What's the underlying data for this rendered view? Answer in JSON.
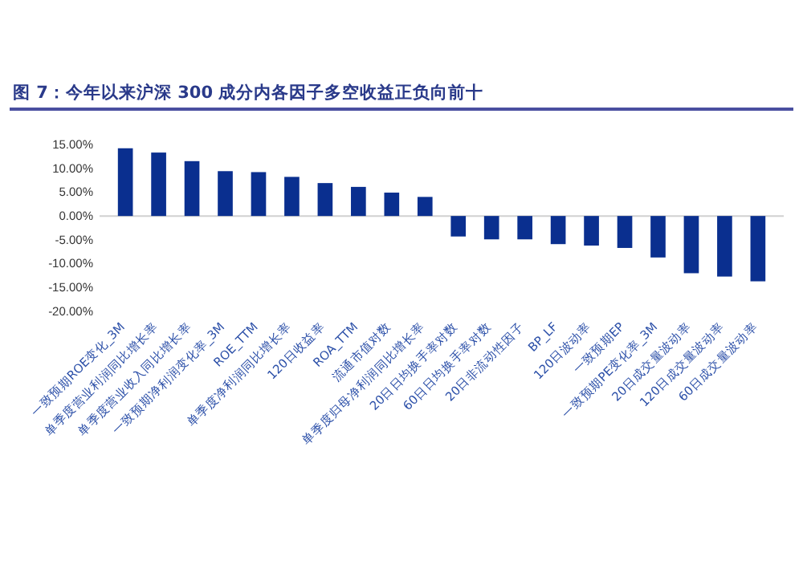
{
  "chart_data": {
    "type": "bar",
    "title": "图 7：今年以来沪深 300 成分内各因子多空收益正负向前十",
    "categories": [
      "一致预期ROE变化_3M",
      "单季度营业利润同比增长率",
      "单季度营业收入同比增长率",
      "一致预期净利润变化率_3M",
      "ROE_TTM",
      "单季度净利润同比增长率",
      "120日收益率",
      "ROA_TTM",
      "流通市值对数",
      "单季度归母净利润同比增长率",
      "20日日均换手率对数",
      "60日日均换手率对数",
      "20日非流动性因子",
      "BP_LF",
      "120日波动率",
      "一致预期EP",
      "一致预期PE变化率_3M",
      "20日成交量波动率",
      "120日成交量波动率",
      "60日成交量波动率"
    ],
    "values": [
      14.2,
      13.3,
      11.5,
      9.4,
      9.2,
      8.2,
      6.9,
      6.1,
      4.9,
      4.0,
      -4.3,
      -4.9,
      -4.9,
      -5.9,
      -6.2,
      -6.7,
      -8.7,
      -12.0,
      -12.7,
      -13.7
    ],
    "color": "#0a2f8f",
    "ylim": [
      -20,
      15
    ],
    "yticks": [
      {
        "value": 15,
        "label": "15.00%"
      },
      {
        "value": 10,
        "label": "10.00%"
      },
      {
        "value": 5,
        "label": "5.00%"
      },
      {
        "value": 0,
        "label": "0.00%"
      },
      {
        "value": -5,
        "label": "-5.00%"
      },
      {
        "value": -10,
        "label": "-10.00%"
      },
      {
        "value": -15,
        "label": "-15.00%"
      },
      {
        "value": -20,
        "label": "-20.00%"
      }
    ]
  }
}
